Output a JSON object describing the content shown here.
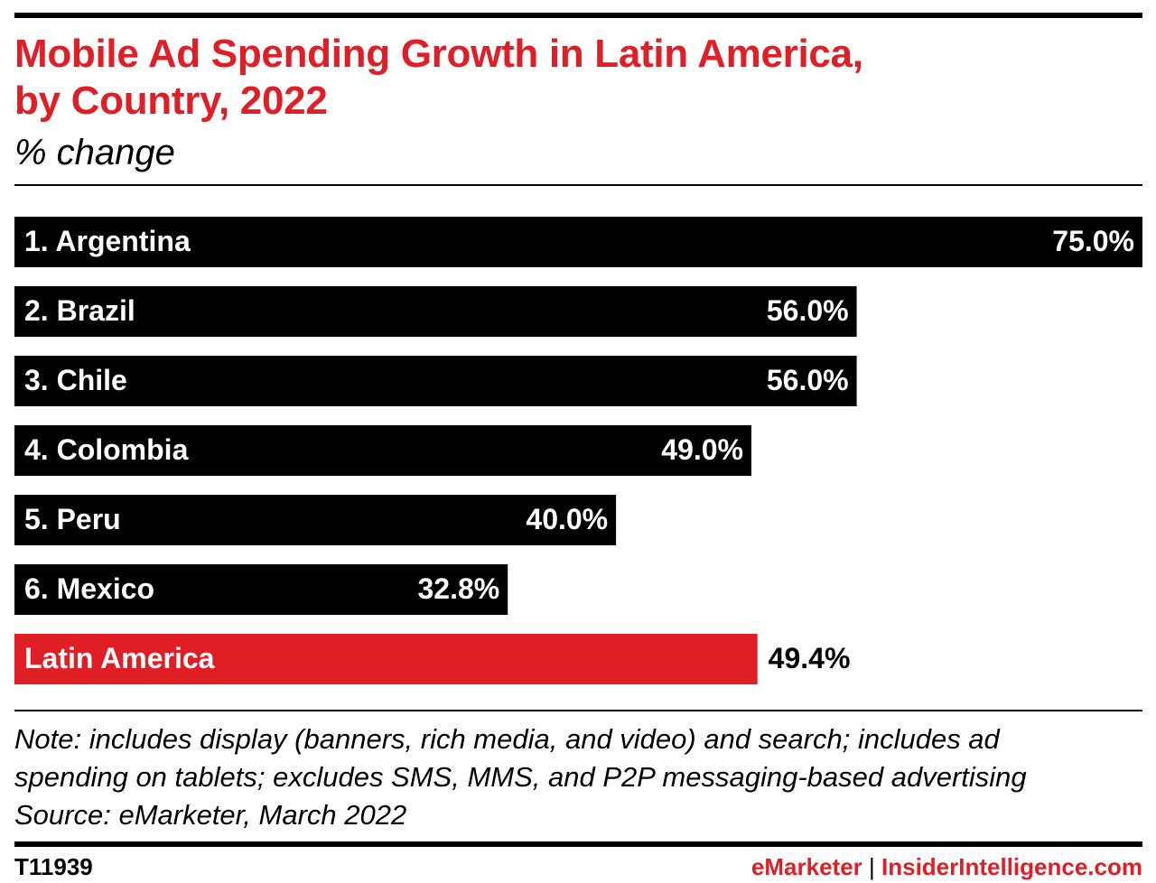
{
  "header": {
    "title_line1": "Mobile Ad Spending Growth in Latin America,",
    "title_line2": "by Country, 2022",
    "subtitle": "% change"
  },
  "chart_data": {
    "type": "bar",
    "orientation": "horizontal",
    "title": "Mobile Ad Spending Growth in Latin America, by Country, 2022",
    "subtitle": "% change",
    "categories": [
      "1. Argentina",
      "2. Brazil",
      "3. Chile",
      "4. Colombia",
      "5. Peru",
      "6. Mexico",
      "Latin America"
    ],
    "values": [
      75.0,
      56.0,
      56.0,
      49.0,
      40.0,
      32.8,
      49.4
    ],
    "value_labels": [
      "75.0%",
      "56.0%",
      "56.0%",
      "49.0%",
      "40.0%",
      "32.8%",
      "49.4%"
    ],
    "highlight_index": 6,
    "colors": {
      "bar": "#000000",
      "highlight": "#e01e26",
      "label_on_bar": "#ffffff",
      "label_outside": "#000000"
    },
    "xlim": [
      0,
      75
    ],
    "grid": false,
    "legend": "none"
  },
  "notes": {
    "line1": "Note: includes display (banners, rich media, and video) and search; includes ad",
    "line2": "spending on tablets; excludes SMS, MMS, and P2P messaging-based advertising",
    "source": "Source: eMarketer, March 2022"
  },
  "footer": {
    "id": "T11939",
    "brand_emarketer": "eMarketer",
    "separator": "|",
    "brand_insider": "InsiderIntelligence.com"
  }
}
